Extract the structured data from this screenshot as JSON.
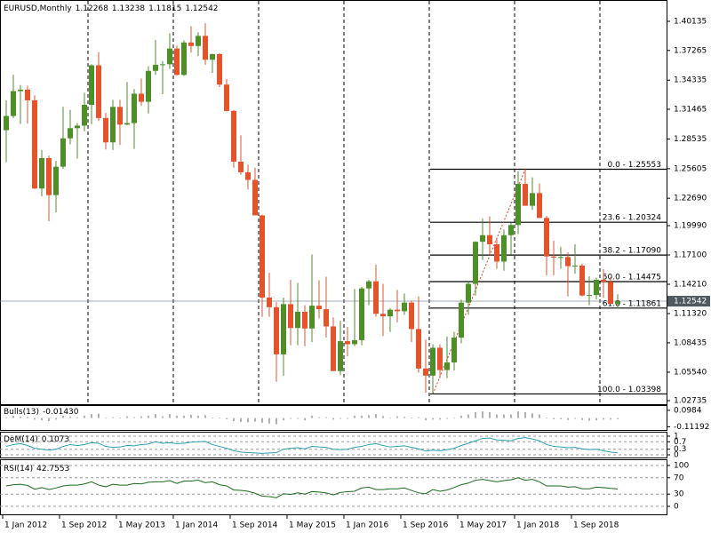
{
  "chart_data": [
    {
      "type": "candlestick",
      "title": "EURUSD,Monthly",
      "categories": [
        "1 Jan 2012",
        null,
        null,
        null,
        null,
        null,
        null,
        null,
        "1 Sep 2012",
        null,
        null,
        null,
        null,
        null,
        null,
        null,
        "1 May 2013",
        null,
        null,
        null,
        null,
        null,
        null,
        null,
        "1 Jan 2014",
        null,
        null,
        null,
        null,
        null,
        null,
        null,
        "1 Sep 2014",
        null,
        null,
        null,
        null,
        null,
        null,
        null,
        "1 May 2015",
        null,
        null,
        null,
        null,
        null,
        null,
        null,
        "1 Jan 2016",
        null,
        null,
        null,
        null,
        null,
        null,
        null,
        "1 Sep 2016",
        null,
        null,
        null,
        null,
        null,
        null,
        null,
        "1 May 2017",
        null,
        null,
        null,
        null,
        null,
        null,
        null,
        "1 Jan 2018",
        null,
        null,
        null,
        null,
        null,
        null,
        null,
        "1 Sep 2018",
        null,
        null,
        null,
        null,
        null,
        null
      ],
      "open": [
        1.294,
        1.308,
        1.3325,
        1.334,
        1.3235,
        1.2365,
        1.2665,
        1.23,
        1.258,
        1.286,
        1.296,
        1.2985,
        1.319,
        1.358,
        1.306,
        1.282,
        1.317,
        1.2995,
        1.301,
        1.33,
        1.322,
        1.3525,
        1.3585,
        1.359,
        1.3745,
        1.3485,
        1.3805,
        1.377,
        1.387,
        1.3635,
        1.369,
        1.339,
        1.313,
        1.263,
        1.2525,
        1.245,
        1.21,
        1.129,
        1.1195,
        1.073,
        1.1225,
        1.099,
        1.115,
        1.0985,
        1.121,
        1.1175,
        1.1005,
        1.0565,
        1.086,
        1.083,
        1.087,
        1.138,
        1.145,
        1.113,
        1.1105,
        1.117,
        1.1155,
        1.124,
        1.098,
        1.059,
        1.052,
        1.0795,
        1.0575,
        1.065,
        1.0895,
        1.124,
        1.1425,
        1.184,
        1.1905,
        1.1815,
        1.1645,
        1.1905,
        1.2005,
        1.241,
        1.2195,
        1.232,
        1.2075,
        1.1695,
        1.1685,
        1.169,
        1.16,
        1.1605,
        1.131,
        1.1315,
        1.1465,
        1.1445,
        1.12268
      ],
      "high": [
        1.3235,
        1.3487,
        1.3385,
        1.338,
        1.3283,
        1.2745,
        1.269,
        1.264,
        1.3172,
        1.314,
        1.301,
        1.331,
        1.359,
        1.371,
        1.311,
        1.324,
        1.324,
        1.3415,
        1.3345,
        1.345,
        1.357,
        1.383,
        1.362,
        1.3895,
        1.3775,
        1.3825,
        1.3965,
        1.3905,
        1.3995,
        1.3695,
        1.37,
        1.3445,
        1.314,
        1.289,
        1.26,
        1.257,
        1.211,
        1.1535,
        1.1245,
        1.129,
        1.1465,
        1.1435,
        1.1215,
        1.1715,
        1.146,
        1.1495,
        1.1095,
        1.106,
        1.1,
        1.1375,
        1.1395,
        1.1465,
        1.1615,
        1.1425,
        1.1185,
        1.1365,
        1.133,
        1.126,
        1.13,
        1.0875,
        1.083,
        1.083,
        1.0905,
        1.095,
        1.127,
        1.1445,
        1.1845,
        1.207,
        1.209,
        1.188,
        1.196,
        1.2025,
        1.2535,
        1.25553,
        1.2475,
        1.2415,
        1.2095,
        1.185,
        1.179,
        1.1735,
        1.1815,
        1.1625,
        1.15,
        1.1485,
        1.157,
        1.149,
        1.13238
      ],
      "low": [
        1.2625,
        1.306,
        1.3002,
        1.3005,
        1.236,
        1.2288,
        1.2042,
        1.213,
        1.256,
        1.28,
        1.266,
        1.293,
        1.3,
        1.303,
        1.275,
        1.2745,
        1.2795,
        1.299,
        1.2755,
        1.318,
        1.3105,
        1.3485,
        1.3295,
        1.3545,
        1.348,
        1.3475,
        1.3705,
        1.367,
        1.3585,
        1.3505,
        1.3365,
        1.3125,
        1.257,
        1.25,
        1.2355,
        1.21,
        1.11,
        1.11,
        1.046,
        1.052,
        1.082,
        1.082,
        1.081,
        1.085,
        1.1085,
        1.0895,
        1.0565,
        1.0525,
        1.071,
        1.081,
        1.082,
        1.1215,
        1.11,
        1.091,
        1.095,
        1.1045,
        1.112,
        1.085,
        1.055,
        1.0352,
        1.03398,
        1.0495,
        1.0495,
        1.057,
        1.084,
        1.112,
        1.131,
        1.166,
        1.1715,
        1.1575,
        1.1555,
        1.1715,
        1.1915,
        1.2205,
        1.2155,
        1.2075,
        1.151,
        1.151,
        1.1575,
        1.13,
        1.1525,
        1.13,
        1.1215,
        1.127,
        1.129,
        1.1225,
        1.11815
      ],
      "close": [
        1.308,
        1.3325,
        1.334,
        1.3235,
        1.2365,
        1.2665,
        1.23,
        1.258,
        1.286,
        1.296,
        1.2985,
        1.319,
        1.358,
        1.306,
        1.282,
        1.317,
        1.2995,
        1.301,
        1.33,
        1.322,
        1.3525,
        1.3585,
        1.359,
        1.3745,
        1.3485,
        1.3805,
        1.377,
        1.387,
        1.3635,
        1.369,
        1.339,
        1.313,
        1.263,
        1.2525,
        1.245,
        1.21,
        1.129,
        1.1195,
        1.073,
        1.1225,
        1.099,
        1.115,
        1.0985,
        1.121,
        1.1175,
        1.1005,
        1.0565,
        1.086,
        1.083,
        1.087,
        1.138,
        1.145,
        1.113,
        1.1105,
        1.117,
        1.1155,
        1.124,
        1.098,
        1.059,
        1.052,
        1.0795,
        1.0575,
        1.065,
        1.0895,
        1.124,
        1.1425,
        1.184,
        1.1905,
        1.1815,
        1.1645,
        1.1905,
        1.2005,
        1.241,
        1.2195,
        1.232,
        1.2075,
        1.1695,
        1.1685,
        1.169,
        1.16,
        1.1605,
        1.131,
        1.1315,
        1.1465,
        1.1445,
        1.1227,
        1.12542
      ],
      "up_color": "#4e8f2a",
      "down_color": "#e5532c",
      "fib_color": "#000000",
      "trend_color": "#e03a1e",
      "ylim": [
        1.02385,
        1.42062
      ],
      "yticks": [
        1.40135,
        1.37265,
        1.34335,
        1.31465,
        1.28535,
        1.25605,
        {
          "value": 1.2269,
          "label": "1.22690"
        },
        {
          "value": 1.1999,
          "label": "1.19990"
        },
        {
          "value": 1.171,
          "label": "1.17100"
        },
        {
          "value": 1.1421,
          "label": "1.14210"
        },
        {
          "value": 1.1132,
          "label": "1.11320"
        },
        1.08435,
        {
          "value": 1.0554,
          "label": "1.05540"
        },
        1.02735
      ],
      "fib": [
        {
          "value": 1.25553,
          "label": "0.0 - 1.25553"
        },
        {
          "value": 1.20324,
          "label": "23.6 - 1.20324"
        },
        {
          "value": 1.1709,
          "label": "38.2 - 1.17090"
        },
        {
          "value": 1.14475,
          "label": "50.0 - 1.14475"
        },
        {
          "value": 1.11861,
          "label": "61.8 - 1.11861"
        },
        {
          "value": 1.03398,
          "label": "100.0 - 1.03398"
        }
      ]
    },
    {
      "type": "bar",
      "title": "Bulls(13)",
      "color": "#b0b0b0",
      "values": [
        0.01,
        0.03,
        0.02,
        0.015,
        -0.02,
        -0.03,
        -0.04,
        -0.02,
        0.03,
        0.02,
        0.01,
        0.03,
        0.05,
        0.055,
        -0.005,
        0.01,
        0.005,
        0.02,
        0.01,
        0.02,
        0.03,
        0.05,
        0.02,
        0.05,
        0.03,
        0.03,
        0.04,
        0.03,
        0.035,
        0.005,
        0.005,
        -0.015,
        -0.04,
        -0.05,
        -0.055,
        -0.045,
        -0.06,
        -0.07,
        -0.08,
        -0.03,
        -0.01,
        -0.01,
        -0.03,
        0.03,
        0.01,
        0.01,
        -0.02,
        -0.01,
        -0.01,
        0.03,
        0.03,
        0.035,
        0.05,
        0.025,
        0.0,
        0.02,
        0.015,
        0.005,
        0.01,
        -0.03,
        -0.02,
        -0.02,
        -0.01,
        -0.005,
        0.03,
        0.045,
        0.075,
        0.085,
        0.075,
        0.045,
        0.045,
        0.045,
        0.085,
        0.075,
        0.06,
        0.045,
        0.005,
        -0.015,
        -0.015,
        -0.025,
        -0.01,
        -0.025,
        -0.035,
        -0.03,
        -0.02,
        -0.02,
        -0.0143
      ],
      "value_labels": [
        null,
        null,
        null,
        null,
        null,
        null,
        null,
        null,
        null,
        null,
        null,
        null,
        null,
        null,
        null,
        null,
        null,
        null,
        null,
        null,
        null,
        null,
        null,
        null,
        null,
        null,
        null,
        null,
        null,
        null,
        null,
        null,
        null,
        null,
        null,
        null,
        null,
        null,
        null,
        null,
        null,
        null,
        null,
        null,
        null,
        null,
        null,
        null,
        null,
        null,
        null,
        null,
        null,
        null,
        null,
        null,
        null,
        null,
        null,
        null,
        null,
        null,
        null,
        null,
        null,
        null,
        null,
        null,
        null,
        null,
        null,
        null,
        null,
        null,
        null,
        null,
        null,
        null,
        null,
        null,
        null,
        null,
        null,
        null,
        null,
        null,
        "-0.01430"
      ],
      "ylim": [
        -0.13,
        0.12
      ],
      "yticks": [
        0.0984,
        -0.11192
      ]
    },
    {
      "type": "line",
      "title": "DeM(14)",
      "color": "#2a9fb0",
      "grid": true,
      "values": [
        0.45,
        0.55,
        0.6,
        0.5,
        0.35,
        0.3,
        0.25,
        0.3,
        0.45,
        0.55,
        0.5,
        0.55,
        0.65,
        0.62,
        0.45,
        0.4,
        0.42,
        0.5,
        0.48,
        0.55,
        0.58,
        0.7,
        0.62,
        0.65,
        0.6,
        0.62,
        0.68,
        0.7,
        0.72,
        0.55,
        0.45,
        0.35,
        0.22,
        0.15,
        0.12,
        0.1,
        0.08,
        0.1,
        0.12,
        0.3,
        0.35,
        0.38,
        0.32,
        0.45,
        0.42,
        0.4,
        0.3,
        0.28,
        0.3,
        0.4,
        0.45,
        0.55,
        0.6,
        0.5,
        0.42,
        0.45,
        0.48,
        0.4,
        0.32,
        0.2,
        0.25,
        0.22,
        0.28,
        0.35,
        0.5,
        0.62,
        0.75,
        0.88,
        0.9,
        0.8,
        0.78,
        0.75,
        0.88,
        0.92,
        0.85,
        0.75,
        0.55,
        0.45,
        0.42,
        0.38,
        0.4,
        0.32,
        0.28,
        0.3,
        0.22,
        0.15,
        0.1073
      ],
      "ylim": [
        0,
        1
      ],
      "yticks": [
        1,
        0.7,
        0.3,
        0
      ]
    },
    {
      "type": "line",
      "title": "RSI(14)",
      "color": "#1a6a1a",
      "grid": true,
      "values": [
        50,
        53,
        54,
        51,
        42,
        46,
        41,
        45,
        50,
        52,
        52,
        55,
        60,
        52,
        48,
        54,
        52,
        52,
        56,
        55,
        59,
        60,
        60,
        63,
        56,
        62,
        62,
        64,
        58,
        60,
        53,
        50,
        40,
        39,
        37,
        32,
        25,
        24,
        21,
        31,
        29,
        33,
        30,
        36,
        35,
        33,
        28,
        34,
        36,
        37,
        45,
        47,
        41,
        41,
        43,
        43,
        45,
        39,
        33,
        31,
        41,
        37,
        40,
        46,
        53,
        57,
        64,
        66,
        63,
        60,
        63,
        65,
        70,
        64,
        66,
        60,
        50,
        50,
        50,
        47,
        48,
        43,
        43,
        47,
        46,
        44,
        42.7553
      ],
      "ylim": [
        0,
        100
      ],
      "yticks": [
        100,
        70,
        30,
        0
      ]
    }
  ]
}
